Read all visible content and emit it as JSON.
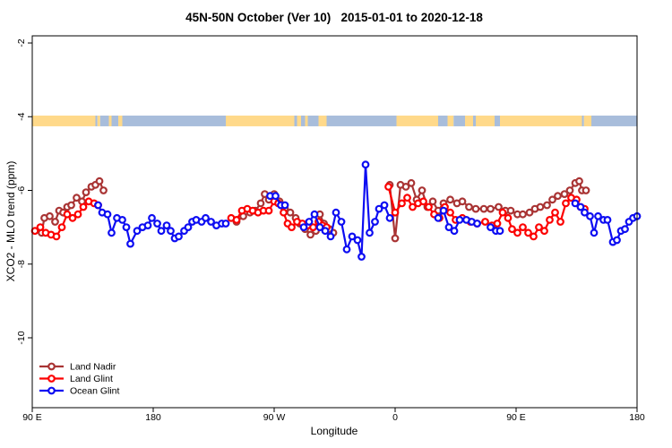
{
  "chart_data": {
    "type": "line",
    "title": "45N-50N October (Ver 10)   2015-01-01 to 2020-12-18",
    "xlabel": "Longitude",
    "ylabel": "XCO2 - MLO trend (ppm)",
    "x_axis": {
      "unit": "degrees along wrapped longitude axis starting at 90E",
      "range_t": [
        0,
        450
      ],
      "ticks": [
        {
          "t": 0,
          "label": "90 E"
        },
        {
          "t": 90,
          "label": "180"
        },
        {
          "t": 180,
          "label": "90 W"
        },
        {
          "t": 270,
          "label": "0"
        },
        {
          "t": 360,
          "label": "90 E"
        },
        {
          "t": 450,
          "label": "180"
        }
      ]
    },
    "y_axis": {
      "unit": "ppm",
      "range": [
        -11.9,
        -1.8
      ],
      "ticks": [
        {
          "v": -2,
          "label": "-2"
        },
        {
          "v": -4,
          "label": "-4"
        },
        {
          "v": -6,
          "label": "-6"
        },
        {
          "v": -8,
          "label": "-8"
        },
        {
          "v": -10,
          "label": "-10"
        }
      ]
    },
    "legend": {
      "position": "bottom-left",
      "items": [
        {
          "label": "Land Nadir",
          "color": "#A93434"
        },
        {
          "label": "Land Glint",
          "color": "#FC0000"
        },
        {
          "label": "Ocean Glint",
          "color": "#0D0DF2"
        }
      ]
    },
    "map_strip": {
      "description": "world land/ocean band for 45N-50N drawn across the top of the plot",
      "land_color": "#FFD98A",
      "ocean_color": "#A8BDDB",
      "v_top": -3.97,
      "v_bottom": -4.26,
      "segments": [
        {
          "t0": 0,
          "t1": 47,
          "type": "land"
        },
        {
          "t0": 47,
          "t1": 48.5,
          "type": "ocean"
        },
        {
          "t0": 48.5,
          "t1": 50.5,
          "type": "land"
        },
        {
          "t0": 50.5,
          "t1": 57,
          "type": "ocean"
        },
        {
          "t0": 57,
          "t1": 59,
          "type": "land"
        },
        {
          "t0": 59,
          "t1": 64,
          "type": "ocean"
        },
        {
          "t0": 64,
          "t1": 67,
          "type": "land"
        },
        {
          "t0": 67,
          "t1": 144,
          "type": "ocean"
        },
        {
          "t0": 144,
          "t1": 195,
          "type": "land"
        },
        {
          "t0": 195,
          "t1": 197,
          "type": "ocean"
        },
        {
          "t0": 197,
          "t1": 200,
          "type": "land"
        },
        {
          "t0": 200,
          "t1": 203,
          "type": "ocean"
        },
        {
          "t0": 203,
          "t1": 205,
          "type": "land"
        },
        {
          "t0": 205,
          "t1": 213,
          "type": "ocean"
        },
        {
          "t0": 213,
          "t1": 219,
          "type": "land"
        },
        {
          "t0": 219,
          "t1": 271,
          "type": "ocean"
        },
        {
          "t0": 271,
          "t1": 302,
          "type": "land"
        },
        {
          "t0": 302,
          "t1": 309,
          "type": "ocean"
        },
        {
          "t0": 309,
          "t1": 313.5,
          "type": "land"
        },
        {
          "t0": 313.5,
          "t1": 322,
          "type": "ocean"
        },
        {
          "t0": 322,
          "t1": 328,
          "type": "land"
        },
        {
          "t0": 328,
          "t1": 330,
          "type": "ocean"
        },
        {
          "t0": 330,
          "t1": 344,
          "type": "land"
        },
        {
          "t0": 344,
          "t1": 348,
          "type": "ocean"
        },
        {
          "t0": 348,
          "t1": 409,
          "type": "land"
        },
        {
          "t0": 409,
          "t1": 410.5,
          "type": "ocean"
        },
        {
          "t0": 410.5,
          "t1": 416,
          "type": "land"
        },
        {
          "t0": 416,
          "t1": 450,
          "type": "ocean"
        }
      ]
    },
    "series": [
      {
        "name": "Land Nadir",
        "color": "#A93434",
        "segments": [
          [
            [
              7,
              -7.15
            ],
            [
              9,
              -6.75
            ],
            [
              13,
              -6.7
            ],
            [
              17,
              -6.85
            ],
            [
              20,
              -6.55
            ],
            [
              23,
              -6.6
            ],
            [
              26,
              -6.45
            ],
            [
              29,
              -6.4
            ],
            [
              33,
              -6.2
            ],
            [
              37,
              -6.3
            ],
            [
              40,
              -6.05
            ],
            [
              44,
              -5.9
            ],
            [
              47,
              -5.85
            ],
            [
              50,
              -5.75
            ],
            [
              53,
              -6.0
            ]
          ],
          [
            [
              152,
              -6.85
            ],
            [
              157,
              -6.7
            ],
            [
              162,
              -6.6
            ],
            [
              166,
              -6.55
            ],
            [
              170,
              -6.35
            ],
            [
              173,
              -6.1
            ],
            [
              176,
              -6.25
            ],
            [
              180,
              -6.1
            ],
            [
              184,
              -6.3
            ],
            [
              188,
              -6.5
            ],
            [
              192,
              -6.6
            ],
            [
              196,
              -6.75
            ],
            [
              199,
              -6.9
            ],
            [
              203,
              -7.05
            ],
            [
              207,
              -7.2
            ],
            [
              211,
              -7.1
            ],
            [
              214,
              -6.65
            ],
            [
              217,
              -6.9
            ],
            [
              221,
              -7.05
            ],
            [
              224,
              -7.15
            ]
          ],
          [
            [
              266,
              -5.85
            ],
            [
              270,
              -7.3
            ],
            [
              274,
              -5.85
            ],
            [
              278,
              -5.9
            ],
            [
              282,
              -5.8
            ],
            [
              286,
              -6.25
            ],
            [
              290,
              -6.0
            ],
            [
              294,
              -6.45
            ],
            [
              298,
              -6.3
            ],
            [
              302,
              -6.55
            ],
            [
              306,
              -6.35
            ],
            [
              311,
              -6.25
            ],
            [
              316,
              -6.35
            ],
            [
              320,
              -6.3
            ],
            [
              325,
              -6.45
            ],
            [
              330,
              -6.5
            ],
            [
              336,
              -6.5
            ],
            [
              341,
              -6.5
            ],
            [
              347,
              -6.45
            ],
            [
              352,
              -6.55
            ],
            [
              356,
              -6.55
            ],
            [
              361,
              -6.65
            ],
            [
              365,
              -6.65
            ],
            [
              370,
              -6.6
            ],
            [
              374,
              -6.5
            ],
            [
              378,
              -6.45
            ],
            [
              383,
              -6.4
            ],
            [
              387,
              -6.25
            ],
            [
              391,
              -6.15
            ],
            [
              396,
              -6.1
            ],
            [
              400,
              -6.0
            ],
            [
              404,
              -5.8
            ],
            [
              407,
              -5.75
            ],
            [
              409,
              -6.0
            ],
            [
              412,
              -6.0
            ]
          ]
        ]
      },
      {
        "name": "Land Glint",
        "color": "#FC0000",
        "segments": [
          [
            [
              2,
              -7.1
            ],
            [
              6,
              -7.0
            ],
            [
              10,
              -7.15
            ],
            [
              14,
              -7.2
            ],
            [
              18,
              -7.25
            ],
            [
              22,
              -7.0
            ],
            [
              26,
              -6.65
            ],
            [
              30,
              -6.75
            ],
            [
              34,
              -6.65
            ],
            [
              38,
              -6.45
            ],
            [
              42,
              -6.3
            ],
            [
              46,
              -6.35
            ],
            [
              49,
              -6.4
            ]
          ],
          [
            [
              148,
              -6.75
            ],
            [
              152,
              -6.8
            ],
            [
              156,
              -6.55
            ],
            [
              160,
              -6.5
            ],
            [
              164,
              -6.55
            ],
            [
              168,
              -6.6
            ],
            [
              172,
              -6.55
            ],
            [
              176,
              -6.55
            ],
            [
              180,
              -6.3
            ],
            [
              183,
              -6.35
            ],
            [
              187,
              -6.6
            ],
            [
              190,
              -6.9
            ],
            [
              193,
              -7.0
            ],
            [
              197,
              -6.85
            ],
            [
              201,
              -6.9
            ],
            [
              205,
              -6.95
            ],
            [
              209,
              -7.0
            ],
            [
              213,
              -6.85
            ],
            [
              216,
              -6.95
            ],
            [
              219,
              -7.0
            ]
          ],
          [
            [
              265,
              -5.9
            ],
            [
              270,
              -6.6
            ],
            [
              275,
              -6.35
            ],
            [
              279,
              -6.2
            ],
            [
              283,
              -6.45
            ],
            [
              287,
              -6.35
            ],
            [
              291,
              -6.3
            ],
            [
              295,
              -6.45
            ],
            [
              299,
              -6.65
            ],
            [
              303,
              -6.75
            ],
            [
              307,
              -6.45
            ],
            [
              311,
              -6.6
            ],
            [
              315,
              -6.8
            ],
            [
              320,
              -6.75
            ],
            [
              326,
              -6.85
            ],
            [
              331,
              -6.9
            ],
            [
              337,
              -6.85
            ],
            [
              342,
              -6.95
            ],
            [
              346,
              -6.9
            ],
            [
              350,
              -6.6
            ],
            [
              354,
              -6.75
            ],
            [
              357,
              -7.05
            ],
            [
              361,
              -7.15
            ],
            [
              365,
              -7.0
            ],
            [
              369,
              -7.15
            ],
            [
              373,
              -7.25
            ],
            [
              377,
              -7.0
            ],
            [
              381,
              -7.1
            ],
            [
              385,
              -6.8
            ],
            [
              389,
              -6.6
            ],
            [
              393,
              -6.85
            ],
            [
              397,
              -6.35
            ],
            [
              401,
              -6.2
            ],
            [
              405,
              -6.25
            ],
            [
              408,
              -6.45
            ],
            [
              411,
              -6.5
            ]
          ]
        ]
      },
      {
        "name": "Ocean Glint",
        "color": "#0D0DF2",
        "segments": [
          [
            [
              49,
              -6.4
            ],
            [
              52,
              -6.6
            ],
            [
              56,
              -6.65
            ],
            [
              59,
              -7.15
            ],
            [
              63,
              -6.75
            ],
            [
              67,
              -6.8
            ],
            [
              70,
              -7.0
            ],
            [
              73,
              -7.45
            ],
            [
              78,
              -7.1
            ],
            [
              82,
              -7.0
            ],
            [
              86,
              -6.95
            ],
            [
              89,
              -6.75
            ],
            [
              93,
              -6.9
            ],
            [
              96,
              -7.1
            ],
            [
              100,
              -6.95
            ],
            [
              103,
              -7.1
            ],
            [
              106,
              -7.3
            ],
            [
              109,
              -7.25
            ],
            [
              113,
              -7.1
            ],
            [
              116,
              -7.0
            ],
            [
              119,
              -6.85
            ],
            [
              122,
              -6.8
            ],
            [
              126,
              -6.85
            ],
            [
              129,
              -6.75
            ],
            [
              133,
              -6.85
            ],
            [
              137,
              -6.95
            ],
            [
              141,
              -6.9
            ],
            [
              144,
              -6.9
            ]
          ],
          [
            [
              177,
              -6.15
            ],
            [
              181,
              -6.15
            ],
            [
              185,
              -6.4
            ],
            [
              188,
              -6.4
            ]
          ],
          [
            [
              202,
              -7.0
            ],
            [
              206,
              -6.85
            ],
            [
              210,
              -6.65
            ],
            [
              214,
              -7.0
            ],
            [
              218,
              -7.1
            ],
            [
              222,
              -7.25
            ],
            [
              226,
              -6.6
            ],
            [
              230,
              -6.85
            ],
            [
              234,
              -7.6
            ],
            [
              238,
              -7.25
            ],
            [
              242,
              -7.35
            ],
            [
              245,
              -7.8
            ],
            [
              248,
              -5.3
            ],
            [
              251,
              -7.15
            ],
            [
              255,
              -6.85
            ],
            [
              258,
              -6.5
            ],
            [
              262,
              -6.4
            ],
            [
              266,
              -6.75
            ]
          ],
          [
            [
              302,
              -6.75
            ],
            [
              306,
              -6.55
            ],
            [
              310,
              -7.0
            ],
            [
              314,
              -7.1
            ],
            [
              318,
              -6.8
            ],
            [
              323,
              -6.8
            ],
            [
              327,
              -6.85
            ],
            [
              331,
              -6.9
            ]
          ],
          [
            [
              341,
              -7.0
            ],
            [
              345,
              -7.1
            ],
            [
              348,
              -7.1
            ]
          ],
          [
            [
              404,
              -6.35
            ],
            [
              408,
              -6.45
            ],
            [
              411,
              -6.6
            ],
            [
              415,
              -6.7
            ],
            [
              418,
              -7.15
            ],
            [
              421,
              -6.7
            ],
            [
              425,
              -6.8
            ],
            [
              428,
              -6.8
            ],
            [
              432,
              -7.4
            ],
            [
              435,
              -7.35
            ],
            [
              438,
              -7.1
            ],
            [
              441,
              -7.05
            ],
            [
              444,
              -6.85
            ],
            [
              447,
              -6.75
            ],
            [
              450,
              -6.7
            ]
          ]
        ]
      }
    ]
  }
}
